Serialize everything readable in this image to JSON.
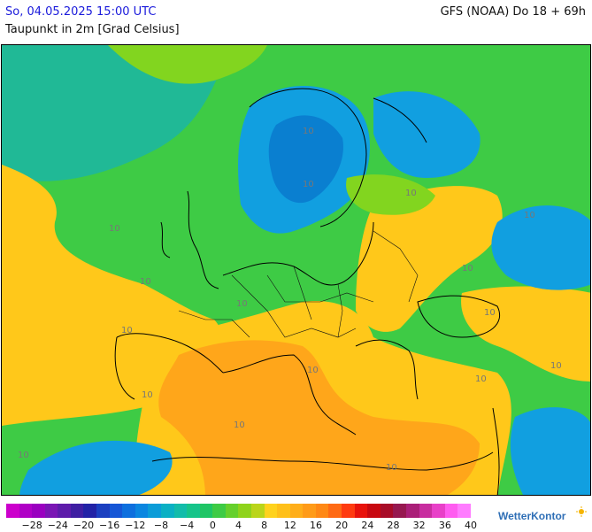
{
  "header": {
    "valid_time": "So, 04.05.2025 15:00 UTC",
    "model_run": "GFS (NOAA) Do 18 + 69h",
    "parameter": "Taupunkt in 2m [Grad Celsius]"
  },
  "map": {
    "region": "Europe",
    "contour_labels": [
      "10",
      "10",
      "10",
      "10",
      "10",
      "10",
      "10",
      "10",
      "10",
      "10",
      "10",
      "10",
      "10",
      "10",
      "10",
      "10",
      "10"
    ],
    "field_colors": {
      "cold_blue": "#0a7fd0",
      "blue": "#119fe0",
      "teal": "#20b996",
      "green": "#3ecb45",
      "lime": "#82d51f",
      "yellow": "#ffc81a",
      "orange": "#ffa61a",
      "dark_orange": "#ff8c16"
    }
  },
  "legend": {
    "colors": [
      "#cc00cc",
      "#b000c6",
      "#9a00c0",
      "#7a16b4",
      "#5e1caa",
      "#3f1fa2",
      "#2222a6",
      "#1b3fc0",
      "#1556d6",
      "#0d6fde",
      "#0a86e0",
      "#0b9cd8",
      "#0ab0c4",
      "#12bcaa",
      "#16c48a",
      "#1fc565",
      "#3ecb45",
      "#66d02c",
      "#8fd31c",
      "#bad51a",
      "#ffd21d",
      "#ffc01a",
      "#ffae1a",
      "#ff9b18",
      "#ff8815",
      "#ff6a14",
      "#ff3b10",
      "#e8120c",
      "#c80810",
      "#a80c28",
      "#961850",
      "#aa1f78",
      "#c82ea0",
      "#e840c8",
      "#ff5cf0",
      "#ff7cff"
    ],
    "labels": [
      "−28",
      "−24",
      "−20",
      "−16",
      "−12",
      "−8",
      "−4",
      "0",
      "4",
      "8",
      "12",
      "16",
      "20",
      "24",
      "28",
      "32",
      "36",
      "40"
    ],
    "min": -32,
    "max": 40,
    "step": 2
  },
  "brand": {
    "name": "WetterKontor"
  }
}
